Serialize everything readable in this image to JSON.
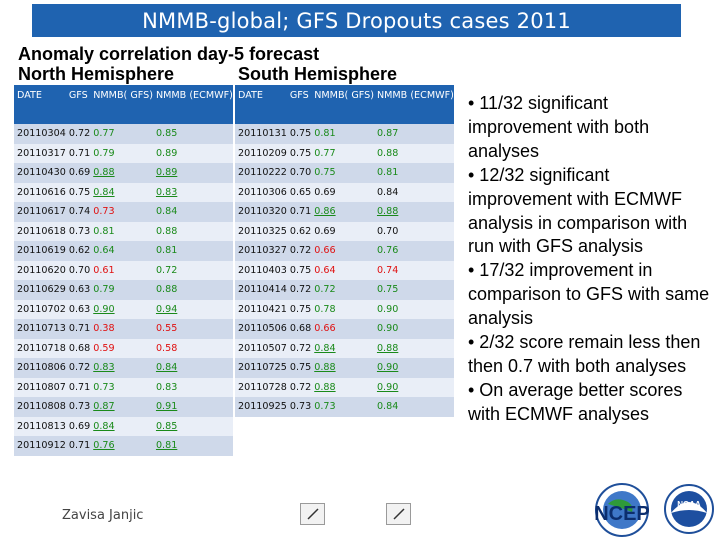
{
  "title": "NMMB-global; GFS Dropouts cases 2011",
  "subtitle": "Anomaly correlation day-5 forecast",
  "nh_label": "North Hemisphere",
  "sh_label": "South Hemisphere",
  "headers": [
    "DATE",
    "GFS",
    "NMMB( GFS)",
    "NMMB (ECMWF)"
  ],
  "nh_rows": [
    [
      "20110304",
      "0.72",
      "0.77",
      "0.85"
    ],
    [
      "20110317",
      "0.71",
      "0.79",
      "0.89"
    ],
    [
      "20110430",
      "0.69",
      "0.88",
      "0.89"
    ],
    [
      "20110616",
      "0.75",
      "0.84",
      "0.83"
    ],
    [
      "20110617",
      "0.74",
      "0.73",
      "0.84"
    ],
    [
      "20110618",
      "0.73",
      "0.81",
      "0.88"
    ],
    [
      "20110619",
      "0.62",
      "0.64",
      "0.81"
    ],
    [
      "20110620",
      "0.70",
      "0.61",
      "0.72"
    ],
    [
      "20110629",
      "0.63",
      "0.79",
      "0.88"
    ],
    [
      "20110702",
      "0.63",
      "0.90",
      "0.94"
    ],
    [
      "20110713",
      "0.71",
      "0.38",
      "0.55"
    ],
    [
      "20110718",
      "0.68",
      "0.59",
      "0.58"
    ],
    [
      "20110806",
      "0.72",
      "0.83",
      "0.84"
    ],
    [
      "20110807",
      "0.71",
      "0.73",
      "0.83"
    ],
    [
      "20110808",
      "0.73",
      "0.87",
      "0.91"
    ],
    [
      "20110813",
      "0.69",
      "0.84",
      "0.85"
    ],
    [
      "20110912",
      "0.71",
      "0.76",
      "0.81"
    ]
  ],
  "sh_rows": [
    [
      "20110131",
      "0.75",
      "0.81",
      "0.87"
    ],
    [
      "20110209",
      "0.75",
      "0.77",
      "0.88"
    ],
    [
      "20110222",
      "0.70",
      "0.75",
      "0.81"
    ],
    [
      "20110306",
      "0.65",
      "0.69",
      "0.84"
    ],
    [
      "20110320",
      "0.71",
      "0.86",
      "0.88"
    ],
    [
      "20110325",
      "0.62",
      "0.69",
      "0.70"
    ],
    [
      "20110327",
      "0.72",
      "0.66",
      "0.76"
    ],
    [
      "20110403",
      "0.75",
      "0.64",
      "0.74"
    ],
    [
      "20110414",
      "0.72",
      "0.72",
      "0.75"
    ],
    [
      "20110421",
      "0.75",
      "0.78",
      "0.90"
    ],
    [
      "20110506",
      "0.68",
      "0.66",
      "0.90"
    ],
    [
      "20110507",
      "0.72",
      "0.84",
      "0.88"
    ],
    [
      "20110725",
      "0.75",
      "0.88",
      "0.90"
    ],
    [
      "20110728",
      "0.72",
      "0.88",
      "0.90"
    ],
    [
      "20110925",
      "0.73",
      "0.73",
      "0.84"
    ]
  ],
  "nh_styles": [
    [
      "",
      "",
      "g",
      "g"
    ],
    [
      "",
      "",
      "g",
      "g"
    ],
    [
      "",
      "",
      "gu",
      "gu"
    ],
    [
      "",
      "",
      "gu",
      "gu"
    ],
    [
      "",
      "",
      "r",
      "g"
    ],
    [
      "",
      "",
      "g",
      "g"
    ],
    [
      "",
      "",
      "g",
      "g"
    ],
    [
      "",
      "",
      "r",
      "g"
    ],
    [
      "",
      "",
      "g",
      "g"
    ],
    [
      "",
      "",
      "gu",
      "gu"
    ],
    [
      "",
      "",
      "r",
      "r"
    ],
    [
      "",
      "",
      "r",
      "r"
    ],
    [
      "",
      "",
      "gu",
      "gu"
    ],
    [
      "",
      "",
      "g",
      "g"
    ],
    [
      "",
      "",
      "gu",
      "gu"
    ],
    [
      "",
      "",
      "gu",
      "gu"
    ],
    [
      "",
      "",
      "gu",
      "gu"
    ]
  ],
  "sh_styles": [
    [
      "",
      "",
      "g",
      "g"
    ],
    [
      "",
      "",
      "g",
      "g"
    ],
    [
      "",
      "",
      "g",
      "g"
    ],
    [
      "",
      "",
      "",
      ""
    ],
    [
      "",
      "",
      "gu",
      "gu"
    ],
    [
      "",
      "",
      "",
      ""
    ],
    [
      "",
      "",
      "r",
      "g"
    ],
    [
      "",
      "",
      "r",
      "r"
    ],
    [
      "",
      "",
      "g",
      "g"
    ],
    [
      "",
      "",
      "g",
      "g"
    ],
    [
      "",
      "",
      "r",
      "g"
    ],
    [
      "",
      "",
      "gu",
      "gu"
    ],
    [
      "",
      "",
      "gu",
      "gu"
    ],
    [
      "",
      "",
      "gu",
      "gu"
    ],
    [
      "",
      "",
      "g",
      "g"
    ]
  ],
  "bullets": [
    "• 11/32 significant improvement with both analyses",
    "• 12/32 significant improvement with ECMWF analysis in comparison with run with GFS analysis",
    "• 17/32 improvement in comparison to GFS with same analysis",
    "• 2/32 score remain less then then 0.7 with both analyses",
    "• On average better scores with ECMWF analyses"
  ],
  "author": "Zavisa Janjic",
  "logos": {
    "ncep_text": "NCEP",
    "noaa_text": "NOAA"
  },
  "colors": {
    "header_bg": "#1f63b0",
    "row_odd": "#cfd9ea",
    "row_even": "#e9eef7",
    "good": "#1a8a1a",
    "bad": "#e01010"
  }
}
